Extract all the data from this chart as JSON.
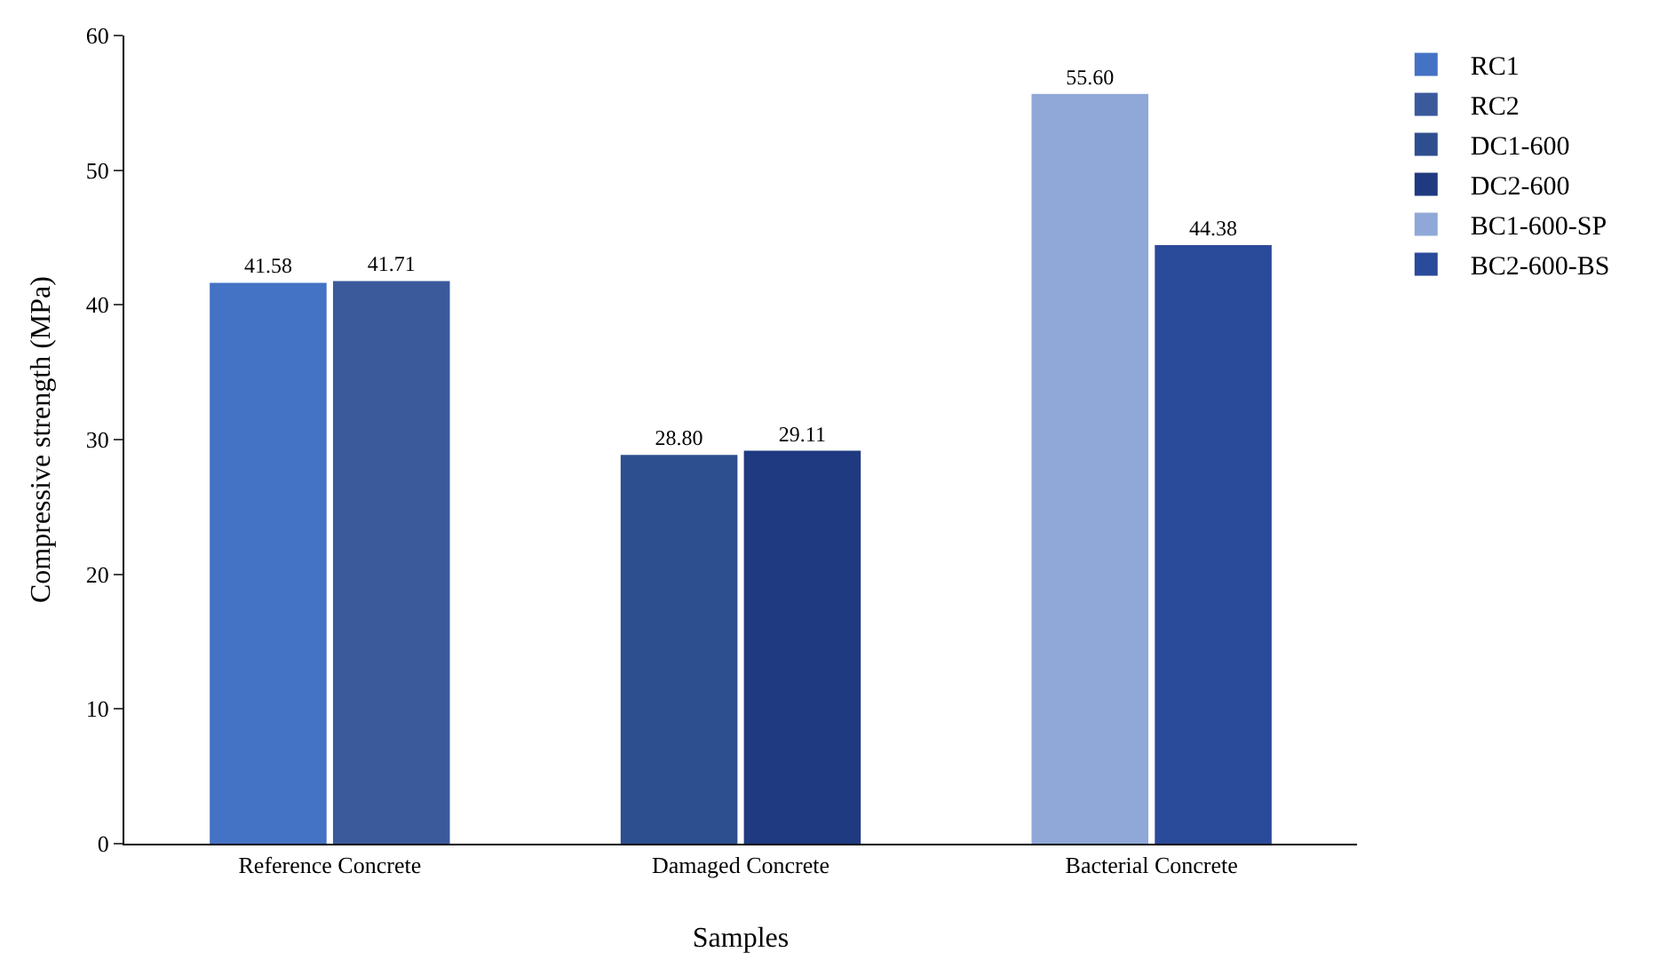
{
  "chart_data": {
    "type": "bar",
    "xlabel": "Samples",
    "ylabel": "Compressive strength (MPa)",
    "categories": [
      "Reference Concrete",
      "Damaged Concrete",
      "Bacterial Concrete"
    ],
    "series": [
      {
        "name": "RC1",
        "color": "#4472c4",
        "values": [
          41.58,
          null,
          null
        ],
        "value_labels": [
          "41.58",
          null,
          null
        ]
      },
      {
        "name": "RC2",
        "color": "#3a5a9c",
        "values": [
          41.71,
          null,
          null
        ],
        "value_labels": [
          "41.71",
          null,
          null
        ]
      },
      {
        "name": "DC1-600",
        "color": "#2e4f8f",
        "values": [
          null,
          28.8,
          null
        ],
        "value_labels": [
          null,
          "28.80",
          null
        ]
      },
      {
        "name": "DC2-600",
        "color": "#1f3a80",
        "values": [
          null,
          29.11,
          null
        ],
        "value_labels": [
          null,
          "29.11",
          null
        ]
      },
      {
        "name": "BC1-600-SP",
        "color": "#8fa8d8",
        "values": [
          null,
          null,
          55.6
        ],
        "value_labels": [
          null,
          null,
          "55.60"
        ]
      },
      {
        "name": "BC2-600-BS",
        "color": "#2a4a9a",
        "values": [
          null,
          null,
          44.38
        ],
        "value_labels": [
          null,
          null,
          "44.38"
        ]
      }
    ],
    "ylim": [
      0,
      60
    ],
    "yticks": [
      0,
      10,
      20,
      30,
      40,
      50,
      60
    ],
    "grid": false,
    "legend": "top right"
  }
}
